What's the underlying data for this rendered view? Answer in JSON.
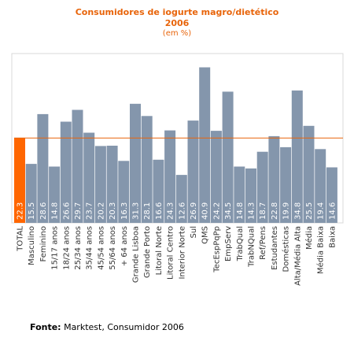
{
  "header": {
    "title": "Consumidores de iogurte magro/dietético",
    "year": "2006",
    "unit": "(em %)"
  },
  "source": {
    "label": "Fonte:",
    "text": "Marktest, Consumidor 2006"
  },
  "colors": {
    "bar": "#8496ac",
    "highlight_bar": "#ff6600",
    "reference_line": "#e8640a",
    "title": "#e8640a",
    "value_text": "#ffffff"
  },
  "chart_data": {
    "type": "bar",
    "title": "Consumidores de iogurte magro/dietético",
    "subtitle": "2006 (em %)",
    "categories": [
      "TOTAL",
      "Masculino",
      "Feminino",
      "15/17 anos",
      "18/24 anos",
      "25/34 anos",
      "35/44 anos",
      "45/54 anos",
      "55/64 anos",
      "+ 64 anos",
      "Grande Lisboa",
      "Grande Porto",
      "Litoral Norte",
      "Litoral Centro",
      "Interior Norte",
      "Sul",
      "QMS",
      "TecEspPqPp",
      "EmpServ",
      "TrabQual",
      "TrabNQual",
      "Ref/Pens",
      "Estudantes",
      "Domésticas",
      "Alta/Média Alta",
      "Média",
      "Média Baixa",
      "Baixa"
    ],
    "values": [
      22.3,
      15.5,
      28.6,
      14.8,
      26.6,
      29.7,
      23.7,
      20.2,
      20.3,
      16.3,
      31.3,
      28.1,
      16.6,
      24.3,
      12.6,
      26.9,
      40.9,
      24.2,
      34.5,
      14.8,
      14.3,
      18.7,
      22.8,
      19.9,
      34.8,
      25.5,
      19.4,
      14.6
    ],
    "highlight_index": 0,
    "reference_value": 22.3,
    "xlabel": "",
    "ylabel": "",
    "grid": false
  }
}
